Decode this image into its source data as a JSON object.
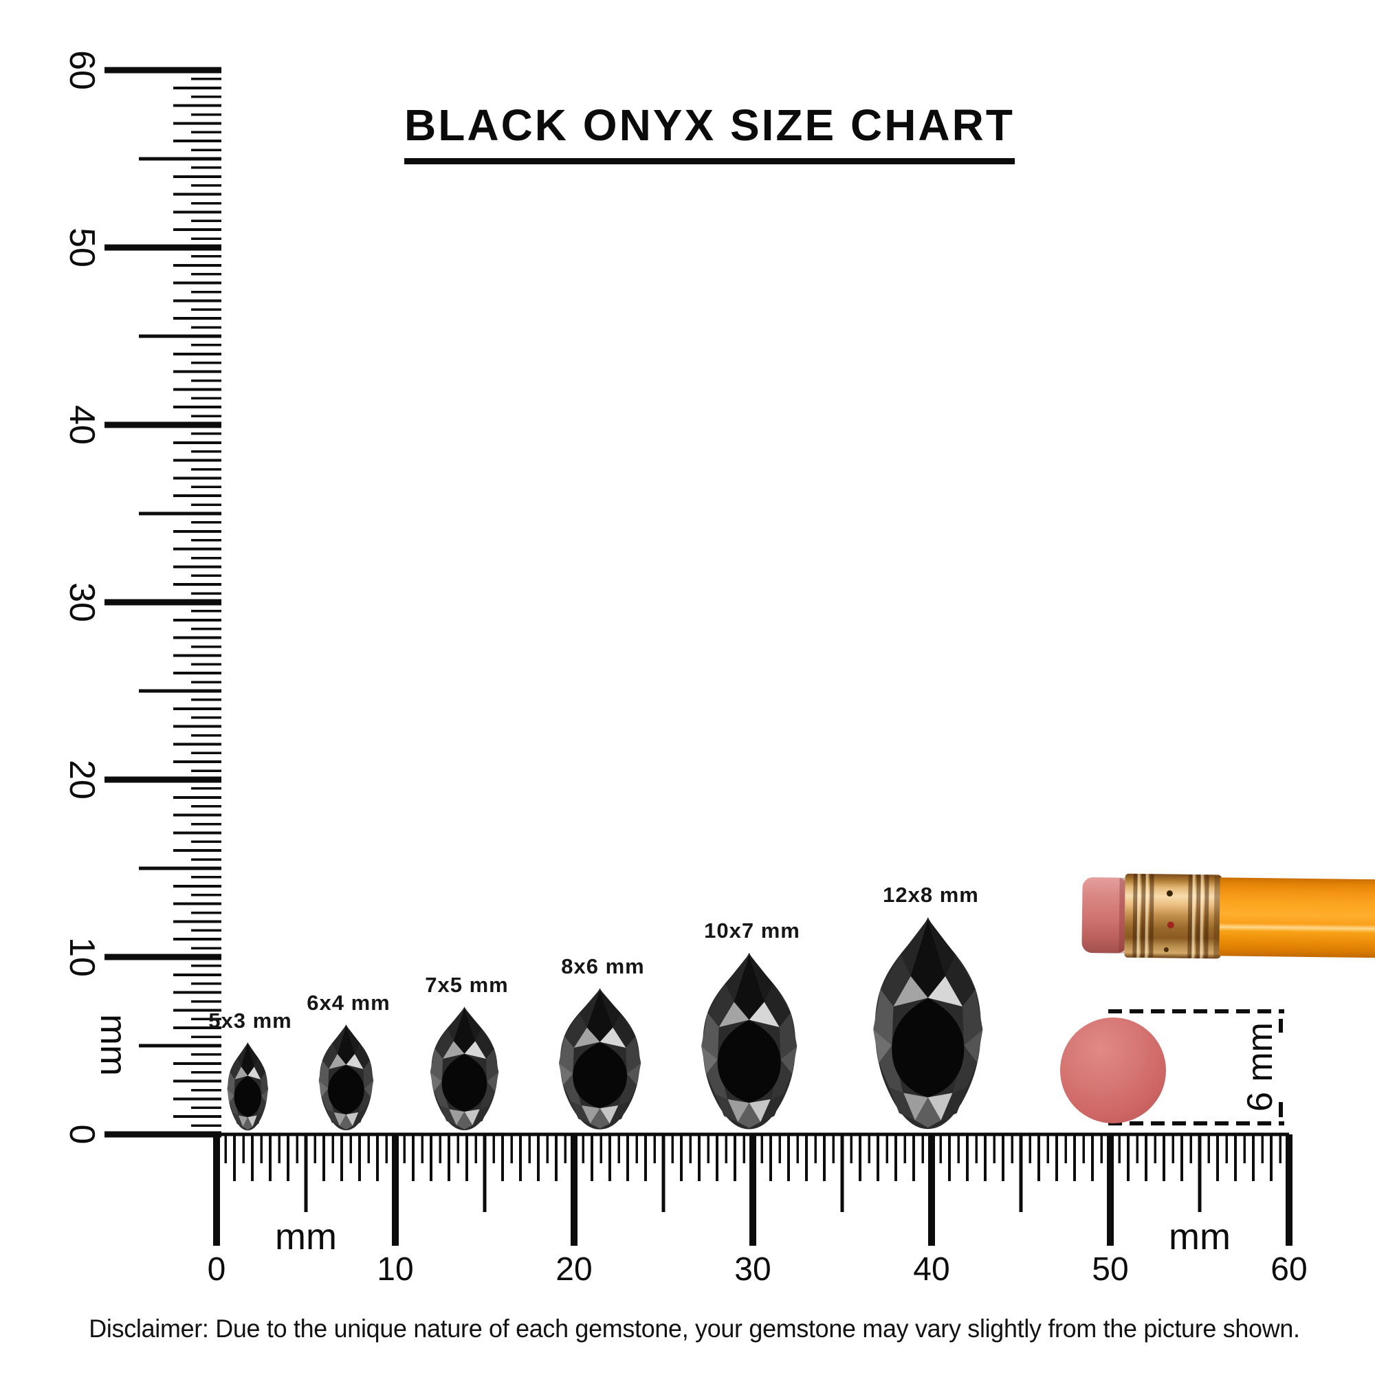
{
  "title": "BLACK ONYX SIZE CHART",
  "rulers": {
    "left": {
      "unit_label": "mm",
      "labels": [
        "0",
        "10",
        "20",
        "30",
        "40",
        "50",
        "60"
      ]
    },
    "bottom": {
      "unit_label_left": "mm",
      "unit_label_right": "mm",
      "labels": [
        "0",
        "10",
        "20",
        "30",
        "40",
        "50",
        "60"
      ]
    }
  },
  "gems": [
    {
      "label": "5x3 mm",
      "height_mm": 5,
      "width_mm": 3
    },
    {
      "label": "6x4 mm",
      "height_mm": 6,
      "width_mm": 4
    },
    {
      "label": "7x5 mm",
      "height_mm": 7,
      "width_mm": 5
    },
    {
      "label": "8x6 mm",
      "height_mm": 8,
      "width_mm": 6
    },
    {
      "label": "10x7 mm",
      "height_mm": 10,
      "width_mm": 7
    },
    {
      "label": "12x8 mm",
      "height_mm": 12,
      "width_mm": 8
    }
  ],
  "reference": {
    "eraser_diameter_label": "6 mm"
  },
  "disclaimer": "Disclaimer: Due to the unique nature of each gemstone, your gemstone may vary slightly from the picture shown.",
  "colors": {
    "ink": "#0c0c0c",
    "gem_body": "#2b2b2b",
    "gem_table": "#070707",
    "eraser_pink": "#d67673",
    "pencil_orange": "#f89b1e",
    "ferrule_copper": "#c08d4a"
  }
}
